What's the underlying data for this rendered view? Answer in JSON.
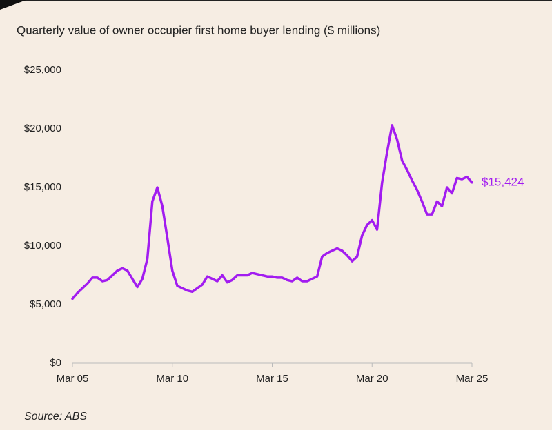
{
  "chart_data": {
    "type": "line",
    "title": "Quarterly value of owner occupier first home buyer lending ($ millions)",
    "source": "Source: ABS",
    "categories": [
      "Mar 05",
      null,
      null,
      null,
      null,
      null,
      null,
      null,
      null,
      null,
      null,
      null,
      null,
      null,
      null,
      null,
      null,
      null,
      null,
      null,
      "Mar 10",
      null,
      null,
      null,
      null,
      null,
      null,
      null,
      null,
      null,
      null,
      null,
      null,
      null,
      null,
      null,
      null,
      null,
      null,
      null,
      "Mar 15",
      null,
      null,
      null,
      null,
      null,
      null,
      null,
      null,
      null,
      null,
      null,
      null,
      null,
      null,
      null,
      null,
      null,
      null,
      null,
      "Mar 20",
      null,
      null,
      null,
      null,
      null,
      null,
      null,
      null,
      null,
      null,
      null,
      null,
      null,
      null,
      null,
      null,
      null,
      null,
      null,
      "Mar 25"
    ],
    "series": [
      {
        "name": "First home buyer lending",
        "color": "#a21cf0",
        "values": [
          5500,
          6000,
          6400,
          6800,
          7300,
          7300,
          7000,
          7100,
          7500,
          7900,
          8100,
          7900,
          7200,
          6500,
          7200,
          8900,
          13800,
          15000,
          13400,
          10700,
          7900,
          6600,
          6400,
          6200,
          6100,
          6400,
          6700,
          7400,
          7200,
          7000,
          7500,
          6900,
          7100,
          7500,
          7500,
          7500,
          7700,
          7600,
          7500,
          7400,
          7400,
          7300,
          7300,
          7100,
          7000,
          7300,
          7000,
          7000,
          7200,
          7400,
          9100,
          9400,
          9600,
          9800,
          9600,
          9200,
          8700,
          9100,
          10900,
          11800,
          12200,
          11400,
          15400,
          18000,
          20300,
          19100,
          17300,
          16500,
          15600,
          14800,
          13800,
          12700,
          12700,
          13800,
          13400,
          15000,
          14500,
          15800,
          15700,
          15900,
          15424
        ],
        "value_labels": [
          null,
          null,
          null,
          null,
          null,
          null,
          null,
          null,
          null,
          null,
          null,
          null,
          null,
          null,
          null,
          null,
          null,
          null,
          null,
          null,
          null,
          null,
          null,
          null,
          null,
          null,
          null,
          null,
          null,
          null,
          null,
          null,
          null,
          null,
          null,
          null,
          null,
          null,
          null,
          null,
          null,
          null,
          null,
          null,
          null,
          null,
          null,
          null,
          null,
          null,
          null,
          null,
          null,
          null,
          null,
          null,
          null,
          null,
          null,
          null,
          null,
          null,
          null,
          null,
          null,
          null,
          null,
          null,
          null,
          null,
          null,
          null,
          null,
          null,
          null,
          null,
          null,
          null,
          null,
          null,
          "$15,424"
        ]
      }
    ],
    "ylim": [
      0,
      25000
    ],
    "yticks": [
      {
        "value": 0,
        "label": "$0"
      },
      {
        "value": 5000,
        "label": "$5,000"
      },
      {
        "value": 10000,
        "label": "$10,000"
      },
      {
        "value": 15000,
        "label": "$15,000"
      },
      {
        "value": 20000,
        "label": "$20,000"
      },
      {
        "value": 25000,
        "label": "$25,000"
      }
    ],
    "grid": false
  }
}
